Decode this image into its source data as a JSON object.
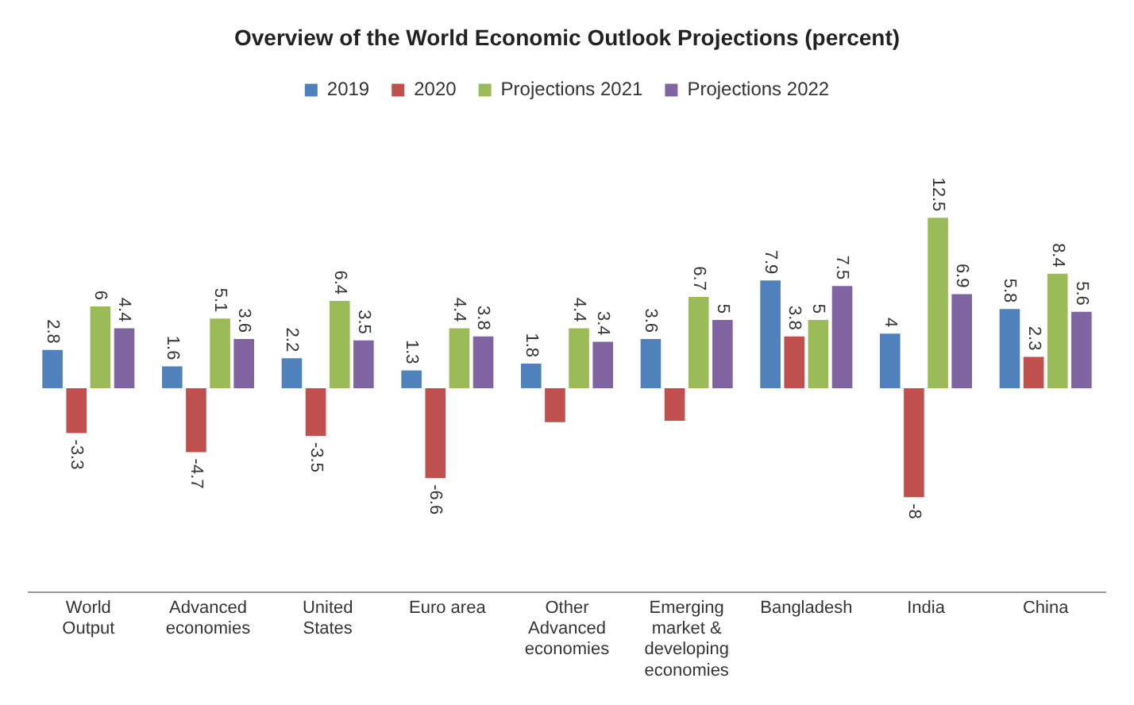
{
  "chart_data": {
    "type": "bar",
    "title": "Overview of the World Economic Outlook Projections (percent)",
    "categories": [
      "World Output",
      "Advanced economies",
      "United States",
      "Euro area",
      "Other Advanced economies",
      "Emerging market & developing economies",
      "Bangladesh",
      "India",
      "China"
    ],
    "series": [
      {
        "name": "2019",
        "color": "#4f81bd",
        "values": [
          2.8,
          1.6,
          2.2,
          1.3,
          1.8,
          3.6,
          7.9,
          4,
          5.8
        ],
        "value_labels": [
          "2.8",
          "1.6",
          "2.2",
          "1.3",
          "1.8",
          "3.6",
          "7.9",
          "4",
          "5.8"
        ]
      },
      {
        "name": "2020",
        "color": "#c0504d",
        "values": [
          -3.3,
          -4.7,
          -3.5,
          -6.6,
          -2.5,
          -2.4,
          3.8,
          -8,
          2.3
        ],
        "value_labels": [
          "-3.3",
          "-4.7",
          "-3.5",
          "-6.6",
          null,
          null,
          "3.8",
          "-8",
          "2.3"
        ]
      },
      {
        "name": "Projections 2021",
        "color": "#9bbb59",
        "values": [
          6,
          5.1,
          6.4,
          4.4,
          4.4,
          6.7,
          5,
          12.5,
          8.4
        ],
        "value_labels": [
          "6",
          "5.1",
          "6.4",
          "4.4",
          "4.4",
          "6.7",
          "5",
          "12.5",
          "8.4"
        ]
      },
      {
        "name": "Projections 2022",
        "color": "#8064a2",
        "values": [
          4.4,
          3.6,
          3.5,
          3.8,
          3.4,
          5,
          7.5,
          6.9,
          5.6
        ],
        "value_labels": [
          "4.4",
          "3.6",
          "3.5",
          "3.8",
          "3.4",
          "5",
          "7.5",
          "6.9",
          "5.6"
        ]
      }
    ],
    "grid": false,
    "legend": "top"
  }
}
